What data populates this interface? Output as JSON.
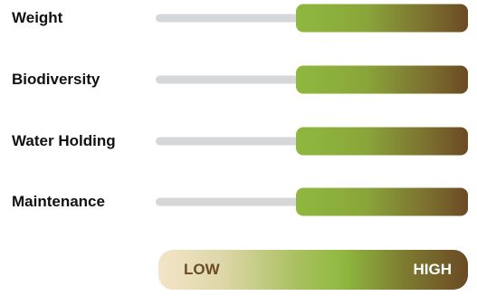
{
  "rows": [
    {
      "label": "Weight",
      "level_start": 0.45,
      "level_end": 1.0
    },
    {
      "label": "Biodiversity",
      "level_start": 0.45,
      "level_end": 1.0
    },
    {
      "label": "Water Holding",
      "level_start": 0.45,
      "level_end": 1.0
    },
    {
      "label": "Maintenance",
      "level_start": 0.45,
      "level_end": 1.0
    }
  ],
  "legend": {
    "low": "LOW",
    "high": "HIGH"
  },
  "colors": {
    "track": "#d5d7d8",
    "fill_start": "#8fb83f",
    "fill_end": "#6b4a24",
    "legend_start": "#f3e5c8",
    "label_text": "#111111"
  }
}
